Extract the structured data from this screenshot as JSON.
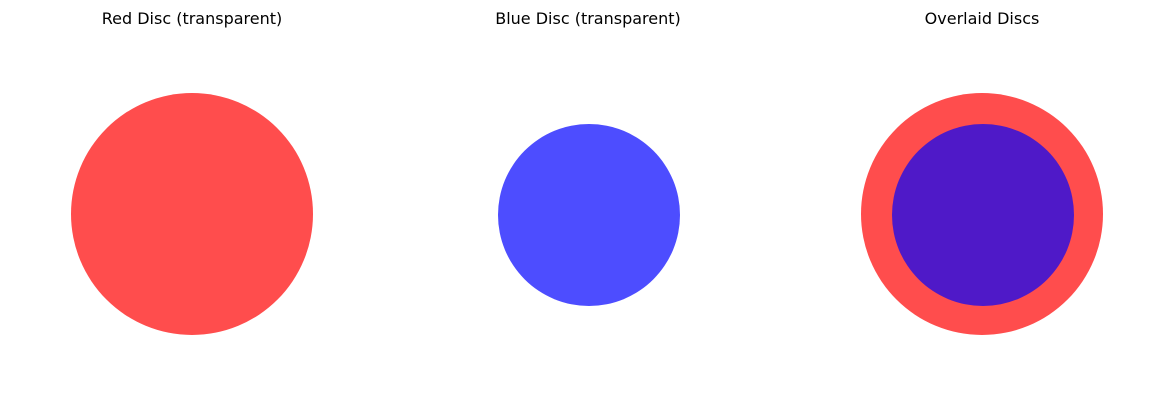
{
  "panels": [
    {
      "title": "Red Disc (transparent)"
    },
    {
      "title": "Blue Disc (transparent)"
    },
    {
      "title": "Overlaid Discs"
    }
  ],
  "colors": {
    "red_disc": "#ff4d4d",
    "blue_disc": "#4d4dff",
    "overlap": "#4f19c8",
    "background": "#ffffff"
  }
}
